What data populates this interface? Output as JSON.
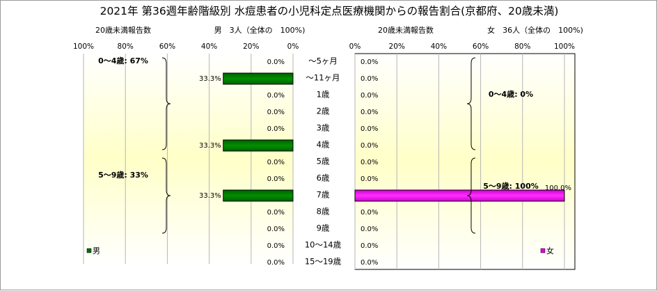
{
  "chart_data": {
    "type": "bar",
    "orientation": "horizontal",
    "title": "2021年 第36週年齢階級別 水痘患者の小児科定点医療機関からの報告割合(京都府、20歳未満)",
    "categories": [
      "～5ヶ月",
      "～11ヶ月",
      "1歳",
      "2歳",
      "3歳",
      "4歳",
      "5歳",
      "6歳",
      "7歳",
      "8歳",
      "9歳",
      "10～14歳",
      "15～19歳"
    ],
    "xlim": [
      0,
      100
    ],
    "tick_labels": [
      "0%",
      "20%",
      "40%",
      "60%",
      "80%",
      "100%"
    ],
    "panels": [
      {
        "side": "left",
        "axis_caption": "20歳未満報告数",
        "header": "男　3人（全体の　100%)",
        "series_name": "男",
        "color": "#007000",
        "values": [
          0.0,
          33.3,
          0.0,
          0.0,
          0.0,
          33.3,
          0.0,
          0.0,
          33.3,
          0.0,
          0.0,
          0.0,
          0.0
        ],
        "value_labels": [
          "0.0%",
          "33.3%",
          "0.0%",
          "0.0%",
          "0.0%",
          "33.3%",
          "0.0%",
          "0.0%",
          "33.3%",
          "0.0%",
          "0.0%",
          "0.0%",
          "0.0%"
        ],
        "groups": [
          {
            "label": "0～4歳: 67%",
            "from": 0,
            "to": 5
          },
          {
            "label": "5～9歳: 33%",
            "from": 6,
            "to": 10
          }
        ]
      },
      {
        "side": "right",
        "axis_caption": "20歳未満報告数",
        "header": "女　36人（全体の　100%)",
        "series_name": "女",
        "color": "#e000e0",
        "values": [
          0.0,
          0.0,
          0.0,
          0.0,
          0.0,
          0.0,
          0.0,
          0.0,
          100.0,
          0.0,
          0.0,
          0.0,
          0.0
        ],
        "value_labels": [
          "0.0%",
          "0.0%",
          "0.0%",
          "0.0%",
          "0.0%",
          "0.0%",
          "0.0%",
          "0.0%",
          "100.0%",
          "0.0%",
          "0.0%",
          "0.0%",
          "0.0%"
        ],
        "groups": [
          {
            "label": "0～4歳: 0%",
            "from": 0,
            "to": 5
          },
          {
            "label": "5～9歳: 100%",
            "from": 6,
            "to": 10
          }
        ]
      }
    ]
  }
}
